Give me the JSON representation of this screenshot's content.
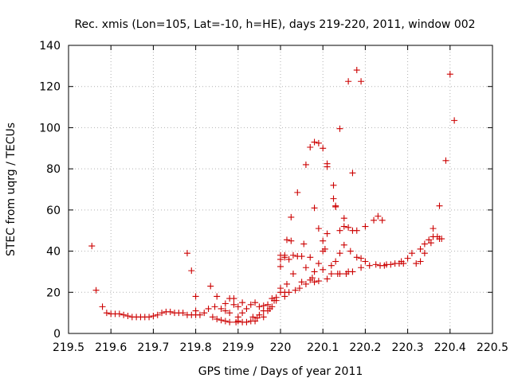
{
  "chart_data": {
    "type": "scatter",
    "title": "Rec. xmis (Lon=105, Lat=-10, h=HE), days 219-220, 2011, window 002",
    "xlabel": "GPS time / Days of year 2011",
    "ylabel": "STEC from uqrg / TECUs",
    "xlim": [
      219.5,
      220.5
    ],
    "ylim": [
      0,
      140
    ],
    "xticks": [
      219.5,
      219.6,
      219.7,
      219.8,
      219.9,
      220,
      220.1,
      220.2,
      220.3,
      220.4,
      220.5
    ],
    "xtick_labels": [
      "219.5",
      "219.6",
      "219.7",
      "219.8",
      "219.9",
      "220",
      "220.1",
      "220.2",
      "220.3",
      "220.4",
      "220.5"
    ],
    "yticks": [
      0,
      20,
      40,
      60,
      80,
      100,
      120,
      140
    ],
    "ytick_labels": [
      "0",
      "20",
      "40",
      "60",
      "80",
      "100",
      "120",
      "140"
    ],
    "grid": true,
    "marker": "+",
    "marker_color": "#cc0000",
    "series": [
      {
        "name": "STEC",
        "points": [
          [
            219.555,
            42.5
          ],
          [
            219.565,
            21
          ],
          [
            219.58,
            13
          ],
          [
            219.59,
            10
          ],
          [
            219.6,
            9.5
          ],
          [
            219.61,
            9.5
          ],
          [
            219.62,
            9.5
          ],
          [
            219.63,
            9
          ],
          [
            219.64,
            8.5
          ],
          [
            219.65,
            8
          ],
          [
            219.66,
            8
          ],
          [
            219.67,
            8
          ],
          [
            219.68,
            8
          ],
          [
            219.69,
            8
          ],
          [
            219.7,
            8.5
          ],
          [
            219.71,
            9
          ],
          [
            219.72,
            10
          ],
          [
            219.73,
            10.5
          ],
          [
            219.74,
            10.5
          ],
          [
            219.75,
            10
          ],
          [
            219.76,
            10
          ],
          [
            219.77,
            10
          ],
          [
            219.78,
            39
          ],
          [
            219.79,
            30.5
          ],
          [
            219.78,
            9
          ],
          [
            219.79,
            9
          ],
          [
            219.8,
            9
          ],
          [
            219.81,
            9
          ],
          [
            219.8,
            18
          ],
          [
            219.8,
            11
          ],
          [
            219.82,
            10
          ],
          [
            219.83,
            12
          ],
          [
            219.835,
            23
          ],
          [
            219.84,
            8
          ],
          [
            219.845,
            13
          ],
          [
            219.85,
            18
          ],
          [
            219.85,
            7
          ],
          [
            219.86,
            6.5
          ],
          [
            219.86,
            12
          ],
          [
            219.87,
            14.5
          ],
          [
            219.87,
            6
          ],
          [
            219.87,
            11
          ],
          [
            219.88,
            17
          ],
          [
            219.88,
            5.5
          ],
          [
            219.88,
            10
          ],
          [
            219.89,
            14
          ],
          [
            219.89,
            17
          ],
          [
            219.895,
            5.5
          ],
          [
            219.9,
            13
          ],
          [
            219.9,
            6
          ],
          [
            219.9,
            8
          ],
          [
            219.91,
            5.5
          ],
          [
            219.91,
            15
          ],
          [
            219.91,
            10
          ],
          [
            219.92,
            5.5
          ],
          [
            219.92,
            12
          ],
          [
            219.93,
            6
          ],
          [
            219.93,
            14
          ],
          [
            219.935,
            8
          ],
          [
            219.94,
            6
          ],
          [
            219.94,
            15
          ],
          [
            219.945,
            7.5
          ],
          [
            219.95,
            9
          ],
          [
            219.95,
            13
          ],
          [
            219.96,
            8
          ],
          [
            219.96,
            11
          ],
          [
            219.96,
            13.5
          ],
          [
            219.97,
            11
          ],
          [
            219.97,
            14
          ],
          [
            219.975,
            12
          ],
          [
            219.98,
            13
          ],
          [
            219.98,
            17
          ],
          [
            219.985,
            16
          ],
          [
            219.99,
            16
          ],
          [
            219.99,
            17.5
          ],
          [
            220.0,
            36
          ],
          [
            220.0,
            38
          ],
          [
            220.0,
            32.5
          ],
          [
            220.0,
            22
          ],
          [
            220.0,
            20
          ],
          [
            220.01,
            37
          ],
          [
            220.01,
            38
          ],
          [
            220.01,
            20
          ],
          [
            220.01,
            18
          ],
          [
            220.015,
            24
          ],
          [
            220.015,
            45.5
          ],
          [
            220.02,
            36
          ],
          [
            220.02,
            20
          ],
          [
            220.025,
            56.5
          ],
          [
            220.025,
            45
          ],
          [
            220.03,
            38
          ],
          [
            220.03,
            29
          ],
          [
            220.035,
            21
          ],
          [
            220.04,
            68.5
          ],
          [
            220.04,
            37.5
          ],
          [
            220.045,
            22
          ],
          [
            220.05,
            37.5
          ],
          [
            220.05,
            25
          ],
          [
            220.055,
            43.5
          ],
          [
            220.06,
            82
          ],
          [
            220.06,
            32
          ],
          [
            220.06,
            24
          ],
          [
            220.07,
            90.5
          ],
          [
            220.07,
            37
          ],
          [
            220.07,
            26
          ],
          [
            220.075,
            27
          ],
          [
            220.08,
            93
          ],
          [
            220.08,
            61
          ],
          [
            220.08,
            30
          ],
          [
            220.08,
            25
          ],
          [
            220.09,
            92.5
          ],
          [
            220.09,
            51
          ],
          [
            220.09,
            34
          ],
          [
            220.09,
            25.5
          ],
          [
            220.1,
            90
          ],
          [
            220.1,
            45
          ],
          [
            220.1,
            40
          ],
          [
            220.1,
            31
          ],
          [
            220.105,
            41
          ],
          [
            220.11,
            48.5
          ],
          [
            220.11,
            26.5
          ],
          [
            220.11,
            82.5
          ],
          [
            220.11,
            81
          ],
          [
            220.12,
            33
          ],
          [
            220.12,
            29
          ],
          [
            220.125,
            72
          ],
          [
            220.125,
            65.5
          ],
          [
            220.13,
            61.5
          ],
          [
            220.13,
            62
          ],
          [
            220.13,
            35
          ],
          [
            220.135,
            29
          ],
          [
            220.14,
            99.5
          ],
          [
            220.14,
            50
          ],
          [
            220.14,
            39
          ],
          [
            220.14,
            29
          ],
          [
            220.15,
            52
          ],
          [
            220.15,
            56
          ],
          [
            220.15,
            43
          ],
          [
            220.155,
            29
          ],
          [
            220.16,
            122.5
          ],
          [
            220.16,
            51.5
          ],
          [
            220.16,
            30
          ],
          [
            220.165,
            40
          ],
          [
            220.17,
            78
          ],
          [
            220.17,
            50
          ],
          [
            220.17,
            30
          ],
          [
            220.18,
            128
          ],
          [
            220.18,
            50
          ],
          [
            220.18,
            37
          ],
          [
            220.19,
            122.5
          ],
          [
            220.19,
            36.5
          ],
          [
            220.19,
            32
          ],
          [
            220.2,
            52
          ],
          [
            220.2,
            35
          ],
          [
            220.21,
            33
          ],
          [
            220.22,
            55
          ],
          [
            220.225,
            33.5
          ],
          [
            220.23,
            57
          ],
          [
            220.235,
            33
          ],
          [
            220.24,
            55
          ],
          [
            220.245,
            33
          ],
          [
            220.25,
            33.5
          ],
          [
            220.26,
            33.5
          ],
          [
            220.27,
            34
          ],
          [
            220.28,
            34
          ],
          [
            220.285,
            35
          ],
          [
            220.29,
            34
          ],
          [
            220.3,
            36.5
          ],
          [
            220.31,
            39
          ],
          [
            220.32,
            34
          ],
          [
            220.33,
            41
          ],
          [
            220.33,
            35
          ],
          [
            220.34,
            43.5
          ],
          [
            220.34,
            39
          ],
          [
            220.35,
            45.5
          ],
          [
            220.355,
            44
          ],
          [
            220.36,
            47
          ],
          [
            220.36,
            51
          ],
          [
            220.37,
            47
          ],
          [
            220.375,
            46
          ],
          [
            220.375,
            62
          ],
          [
            220.38,
            46
          ],
          [
            220.39,
            84
          ],
          [
            220.4,
            126
          ],
          [
            220.41,
            103.5
          ]
        ]
      }
    ]
  }
}
